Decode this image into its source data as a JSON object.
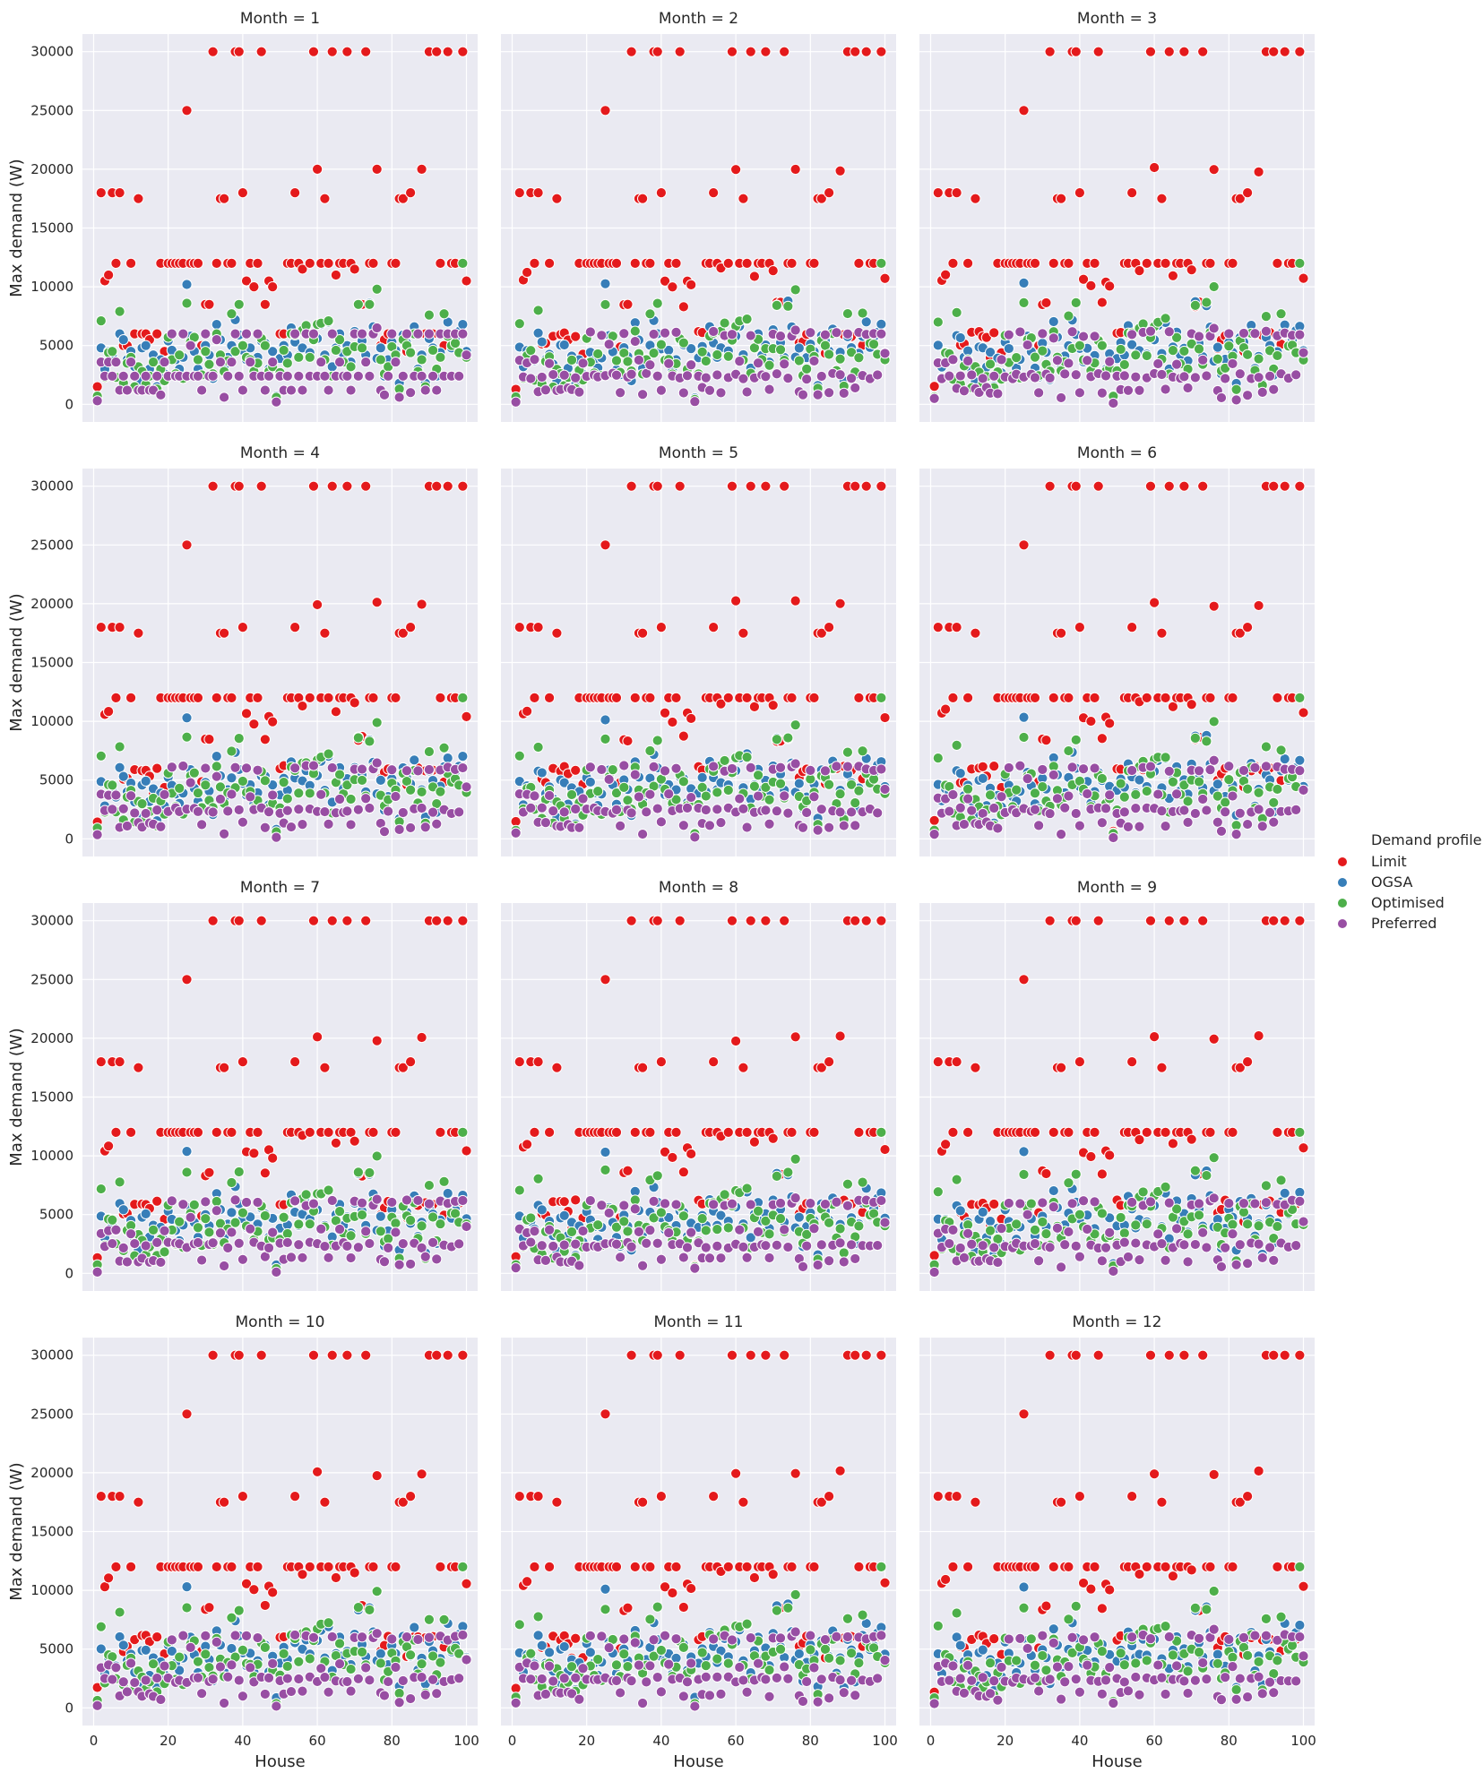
{
  "chart_data": {
    "type": "scatter",
    "facet_title_prefix": "Month = ",
    "facets": [
      1,
      2,
      3,
      4,
      5,
      6,
      7,
      8,
      9,
      10,
      11,
      12
    ],
    "xlabel": "House",
    "ylabel": "Max demand (W)",
    "xlim": [
      -3,
      103
    ],
    "ylim": [
      -1500,
      31500
    ],
    "xticks": [
      0,
      20,
      40,
      60,
      80,
      100
    ],
    "yticks": [
      0,
      5000,
      10000,
      15000,
      20000,
      25000,
      30000
    ],
    "grid": true,
    "legend": {
      "title": "Demand profile",
      "position": "right",
      "entries": [
        "Limit",
        "OGSA",
        "Optimised",
        "Preferred"
      ]
    },
    "colors": {
      "Limit": "#e41a1c",
      "OGSA": "#377eb8",
      "Optimised": "#4daf4a",
      "Preferred": "#984ea3",
      "panel_bg": "#eaeaf2",
      "grid": "#ffffff"
    },
    "series": [
      {
        "name": "Limit",
        "x": [
          1,
          2,
          3,
          4,
          5,
          6,
          7,
          8,
          9,
          10,
          11,
          12,
          13,
          14,
          15,
          16,
          17,
          18,
          19,
          20,
          21,
          22,
          23,
          24,
          25,
          26,
          27,
          28,
          29,
          30,
          31,
          32,
          33,
          34,
          35,
          36,
          37,
          38,
          39,
          40,
          41,
          42,
          43,
          44,
          45,
          46,
          47,
          48,
          49,
          50,
          51,
          52,
          53,
          54,
          55,
          56,
          57,
          58,
          59,
          60,
          61,
          62,
          63,
          64,
          65,
          66,
          67,
          68,
          69,
          70,
          71,
          72,
          73,
          74,
          75,
          76,
          77,
          78,
          79,
          80,
          81,
          82,
          83,
          84,
          85,
          86,
          87,
          88,
          89,
          90,
          91,
          92,
          93,
          94,
          95,
          96,
          97,
          98,
          99,
          100
        ],
        "y": [
          1500,
          18000,
          10500,
          11000,
          18000,
          12000,
          18000,
          5000,
          5000,
          12000,
          6000,
          17500,
          6000,
          6000,
          5500,
          4000,
          6000,
          12000,
          4500,
          12000,
          12000,
          12000,
          12000,
          12000,
          25000,
          12000,
          12000,
          12000,
          5000,
          8500,
          8500,
          30000,
          12000,
          17500,
          17500,
          12000,
          12000,
          30000,
          30000,
          18000,
          10500,
          12000,
          10000,
          12000,
          30000,
          8500,
          10500,
          10000,
          500,
          6000,
          6000,
          12000,
          12000,
          18000,
          12000,
          11500,
          6000,
          12000,
          30000,
          20000,
          12000,
          17500,
          12000,
          30000,
          11000,
          12000,
          12000,
          30000,
          12000,
          11500,
          8500,
          8500,
          30000,
          12000,
          12000,
          20000,
          5000,
          5500,
          6000,
          12000,
          12000,
          17500,
          17500,
          4500,
          18000,
          6000,
          6000,
          20000,
          6000,
          30000,
          6000,
          30000,
          12000,
          5000,
          30000,
          12000,
          12000,
          6000,
          30000,
          10500
        ]
      },
      {
        "name": "OGSA",
        "x": [
          1,
          2,
          3,
          4,
          5,
          6,
          7,
          8,
          9,
          10,
          11,
          12,
          13,
          14,
          15,
          16,
          17,
          18,
          19,
          20,
          21,
          22,
          23,
          24,
          25,
          26,
          27,
          28,
          29,
          30,
          31,
          32,
          33,
          34,
          35,
          36,
          37,
          38,
          39,
          40,
          41,
          42,
          43,
          44,
          45,
          46,
          47,
          48,
          49,
          50,
          51,
          52,
          53,
          54,
          55,
          56,
          57,
          58,
          59,
          60,
          61,
          62,
          63,
          64,
          65,
          66,
          67,
          68,
          69,
          70,
          71,
          72,
          73,
          74,
          75,
          76,
          77,
          78,
          79,
          80,
          81,
          82,
          83,
          84,
          85,
          86,
          87,
          88,
          89,
          90,
          91,
          92,
          93,
          94,
          95,
          96,
          97,
          98,
          99,
          100
        ],
        "y": [
          500,
          4800,
          3000,
          4500,
          4200,
          3600,
          6000,
          5500,
          3800,
          4500,
          3200,
          2000,
          4800,
          5000,
          3000,
          4200,
          1500,
          3800,
          2600,
          5400,
          4600,
          3800,
          3000,
          4000,
          10200,
          5800,
          4500,
          3000,
          2500,
          5000,
          4200,
          2200,
          6800,
          5500,
          3200,
          4000,
          5000,
          7200,
          5900,
          4600,
          3800,
          4800,
          2800,
          4000,
          5400,
          5200,
          3000,
          4500,
          700,
          3900,
          5000,
          4200,
          6500,
          5300,
          4100,
          4800,
          6000,
          4400,
          5800,
          5600,
          6800,
          4200,
          7000,
          3200,
          4800,
          6000,
          4300,
          5000,
          3600,
          6200,
          8500,
          5400,
          4200,
          8600,
          6600,
          3900,
          4800,
          2400,
          3800,
          5300,
          4600,
          1800,
          5900,
          5200,
          4500,
          6600,
          3000,
          4200,
          1800,
          5600,
          4800,
          2400,
          4400,
          6000,
          7000,
          4800,
          5500,
          6200,
          6800,
          4500
        ]
      },
      {
        "name": "Optimised",
        "x": [
          1,
          2,
          3,
          4,
          5,
          6,
          7,
          8,
          9,
          10,
          11,
          12,
          13,
          14,
          15,
          16,
          17,
          18,
          19,
          20,
          21,
          22,
          23,
          24,
          25,
          26,
          27,
          28,
          29,
          30,
          31,
          32,
          33,
          34,
          35,
          36,
          37,
          38,
          39,
          40,
          41,
          42,
          43,
          44,
          45,
          46,
          47,
          48,
          49,
          50,
          51,
          52,
          53,
          54,
          55,
          56,
          57,
          58,
          59,
          60,
          61,
          62,
          63,
          64,
          65,
          66,
          67,
          68,
          69,
          70,
          71,
          72,
          73,
          74,
          75,
          76,
          77,
          78,
          79,
          80,
          81,
          82,
          83,
          84,
          85,
          86,
          87,
          88,
          89,
          90,
          91,
          92,
          93,
          94,
          95,
          96,
          97,
          98,
          99,
          100
        ],
        "y": [
          700,
          7100,
          2300,
          4400,
          4500,
          2300,
          7900,
          1800,
          3500,
          4000,
          1500,
          3200,
          2800,
          1700,
          2400,
          3600,
          1300,
          3000,
          2000,
          5700,
          3800,
          2600,
          4200,
          2200,
          8600,
          5300,
          5700,
          3800,
          2500,
          4500,
          3400,
          2600,
          6000,
          4200,
          2800,
          3700,
          7700,
          4500,
          8500,
          5000,
          4000,
          3800,
          2800,
          3500,
          5600,
          5000,
          2800,
          3200,
          600,
          2700,
          4600,
          3500,
          6000,
          5900,
          4000,
          6300,
          6700,
          4000,
          5500,
          6800,
          6900,
          3800,
          7100,
          2400,
          4600,
          5500,
          3600,
          4500,
          3200,
          4900,
          8500,
          4800,
          3600,
          8500,
          6000,
          9800,
          3800,
          2600,
          3200,
          4900,
          4200,
          1300,
          5500,
          5000,
          4400,
          6000,
          2800,
          3800,
          1500,
          7600,
          4600,
          3000,
          4000,
          7700,
          5800,
          5000,
          5200,
          4400,
          12000,
          4000
        ]
      },
      {
        "name": "Preferred",
        "x": [
          1,
          2,
          3,
          4,
          5,
          6,
          7,
          8,
          9,
          10,
          11,
          12,
          13,
          14,
          15,
          16,
          17,
          18,
          19,
          20,
          21,
          22,
          23,
          24,
          25,
          26,
          27,
          28,
          29,
          30,
          31,
          32,
          33,
          34,
          35,
          36,
          37,
          38,
          39,
          40,
          41,
          42,
          43,
          44,
          45,
          46,
          47,
          48,
          49,
          50,
          51,
          52,
          53,
          54,
          55,
          56,
          57,
          58,
          59,
          60,
          61,
          62,
          63,
          64,
          65,
          66,
          67,
          68,
          69,
          70,
          71,
          72,
          73,
          74,
          75,
          76,
          77,
          78,
          79,
          80,
          81,
          82,
          83,
          84,
          85,
          86,
          87,
          88,
          89,
          90,
          91,
          92,
          93,
          94,
          95,
          96,
          97,
          98,
          99,
          100
        ],
        "y": [
          300,
          3600,
          2400,
          3600,
          2400,
          3600,
          1200,
          2400,
          1200,
          3600,
          2400,
          1200,
          1200,
          2400,
          1200,
          1200,
          2400,
          800,
          3600,
          2400,
          6000,
          2400,
          2400,
          6000,
          2400,
          5000,
          2400,
          2400,
          1200,
          6000,
          2400,
          2400,
          5500,
          3600,
          600,
          2400,
          3600,
          6000,
          2400,
          1200,
          6000,
          3600,
          2400,
          6000,
          2400,
          1200,
          2400,
          3600,
          200,
          2400,
          1200,
          2400,
          1200,
          6000,
          2400,
          1200,
          6000,
          2400,
          6000,
          2400,
          3600,
          2400,
          1200,
          6000,
          2400,
          3600,
          2400,
          2400,
          1200,
          6000,
          2400,
          6000,
          3600,
          2400,
          6000,
          6500,
          1200,
          800,
          2400,
          6000,
          3600,
          600,
          2400,
          6000,
          1000,
          2400,
          6000,
          2400,
          1200,
          6000,
          2400,
          1200,
          6000,
          2400,
          6000,
          2400,
          6000,
          2400,
          6000,
          4200
        ]
      }
    ]
  }
}
